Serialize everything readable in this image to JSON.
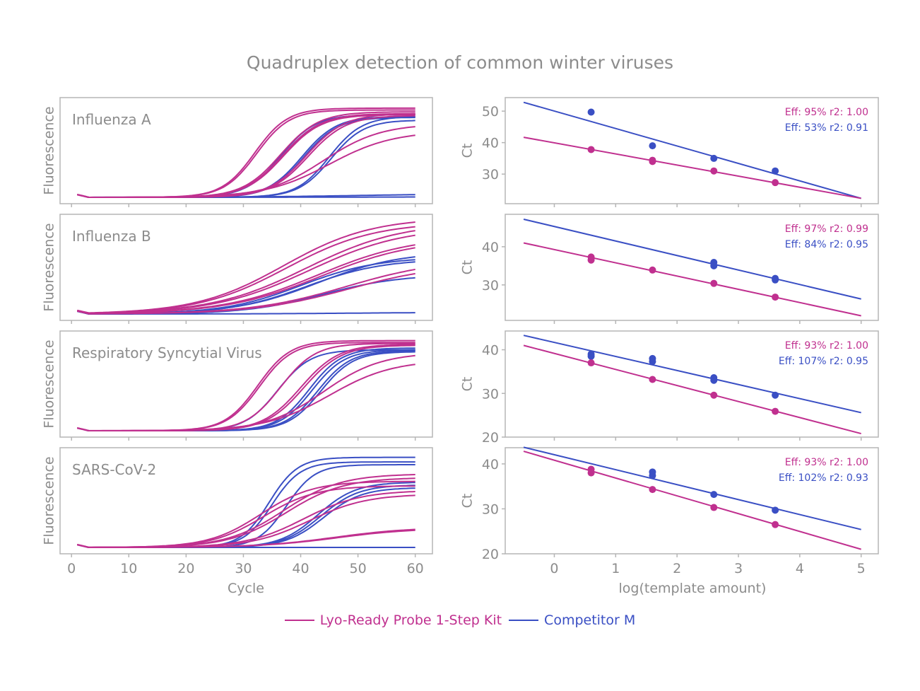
{
  "title": "Quadruplex detection of common winter viruses",
  "colors": {
    "kit": "#c0308f",
    "competitor": "#3a4fc4",
    "text": "#8c8c8c",
    "frame": "#b5b5b5"
  },
  "legend": {
    "placement": "bottom-center",
    "items": [
      {
        "label": "Lyo-Ready Probe 1-Step Kit",
        "color": "#c0308f"
      },
      {
        "label": "Competitor M",
        "color": "#3a4fc4"
      }
    ]
  },
  "chart_data": [
    {
      "type": "line",
      "title": "",
      "xlabel": "Cycle",
      "ylabel": "Fluorescence",
      "xlim": [
        -2,
        63
      ],
      "xticks": [
        0,
        10,
        20,
        30,
        40,
        50,
        60
      ],
      "y_tick_labels": false,
      "curve_model": "sigmoid amplification curves: [midpoint cycle, plateau (relative fluorescence), steepness]",
      "panels": [
        {
          "label": "Influenza A",
          "kit": [
            [
              32,
              0.97,
              0.35
            ],
            [
              32.3,
              0.95,
              0.35
            ],
            [
              36.5,
              0.93,
              0.3
            ],
            [
              36.8,
              0.91,
              0.3
            ],
            [
              37,
              0.9,
              0.3
            ],
            [
              41,
              0.91,
              0.3
            ],
            [
              41.3,
              0.89,
              0.3
            ],
            [
              44,
              0.8,
              0.2
            ],
            [
              45,
              0.72,
              0.18
            ]
          ],
          "competitor": [
            [
              36.5,
              0.9,
              0.33
            ],
            [
              40.2,
              0.88,
              0.33
            ],
            [
              40.5,
              0.87,
              0.33
            ],
            [
              45,
              0.88,
              0.35
            ],
            [
              45.3,
              0.84,
              0.35
            ],
            [
              50,
              0.04,
              0.1
            ],
            [
              50,
              0.005,
              0.1
            ]
          ]
        },
        {
          "label": "Influenza B",
          "kit": [
            [
              37,
              1.05,
              0.13
            ],
            [
              37.5,
              1.0,
              0.13
            ],
            [
              41,
              1.0,
              0.12
            ],
            [
              41.5,
              0.95,
              0.12
            ],
            [
              43,
              0.85,
              0.12
            ],
            [
              43.5,
              0.82,
              0.12
            ],
            [
              48,
              0.6,
              0.12
            ],
            [
              48.5,
              0.55,
              0.12
            ]
          ],
          "competitor": [
            [
              40,
              0.62,
              0.15
            ],
            [
              41,
              0.6,
              0.15
            ],
            [
              43,
              0.68,
              0.14
            ],
            [
              44,
              0.43,
              0.15
            ],
            [
              50,
              0.02,
              0.1
            ]
          ]
        },
        {
          "label": "Respiratory Syncytial Virus",
          "kit": [
            [
              32.5,
              0.98,
              0.35
            ],
            [
              32.8,
              0.96,
              0.35
            ],
            [
              36.5,
              0.95,
              0.33
            ],
            [
              40,
              0.94,
              0.3
            ],
            [
              40.5,
              0.93,
              0.3
            ],
            [
              44,
              0.85,
              0.2
            ],
            [
              45,
              0.77,
              0.18
            ]
          ],
          "competitor": [
            [
              36,
              0.88,
              0.35
            ],
            [
              41.5,
              0.9,
              0.35
            ],
            [
              42,
              0.88,
              0.35
            ],
            [
              43,
              0.87,
              0.35
            ],
            [
              43.5,
              0.86,
              0.35
            ]
          ]
        },
        {
          "label": "SARS-CoV-2",
          "kit": [
            [
              33,
              0.72,
              0.22
            ],
            [
              33.5,
              0.67,
              0.22
            ],
            [
              37,
              0.8,
              0.2
            ],
            [
              37.5,
              0.76,
              0.2
            ],
            [
              40.5,
              0.62,
              0.2
            ],
            [
              41.5,
              0.58,
              0.2
            ],
            [
              46,
              0.22,
              0.15
            ],
            [
              46.3,
              0.21,
              0.15
            ]
          ],
          "competitor": [
            [
              34.5,
              0.98,
              0.4
            ],
            [
              35,
              0.93,
              0.4
            ],
            [
              37.5,
              0.9,
              0.4
            ],
            [
              43,
              0.71,
              0.3
            ],
            [
              43.5,
              0.68,
              0.3
            ],
            [
              44,
              0.65,
              0.3
            ],
            [
              50,
              0.0,
              0.1
            ]
          ]
        }
      ]
    },
    {
      "type": "scatter",
      "title": "",
      "xlabel": "log(template amount)",
      "ylabel": "Ct",
      "xlim": [
        -0.8,
        5.28
      ],
      "xticks": [
        0,
        1,
        2,
        3,
        4,
        5
      ],
      "panels": [
        {
          "ylim": [
            20.6,
            54.3
          ],
          "yticks": [
            30,
            40,
            50
          ],
          "kit": {
            "annotation": "Eff: 95% r2: 1.00",
            "fit": [
              [
                -0.5,
                41.7
              ],
              [
                5,
                22.3
              ]
            ],
            "points": [
              [
                0.6,
                37.8
              ],
              [
                1.6,
                34.4
              ],
              [
                1.6,
                34.0
              ],
              [
                2.6,
                31.0
              ],
              [
                3.6,
                27.3
              ]
            ]
          },
          "competitor": {
            "annotation": "Eff: 53% r2: 0.91",
            "fit": [
              [
                -0.5,
                52.8
              ],
              [
                5,
                22.3
              ]
            ],
            "points": [
              [
                0.6,
                49.7
              ],
              [
                1.6,
                39.0
              ],
              [
                2.6,
                35.0
              ],
              [
                3.6,
                31.0
              ]
            ]
          }
        },
        {
          "ylim": [
            20.7,
            48.5
          ],
          "yticks": [
            30,
            40
          ],
          "kit": {
            "annotation": "Eff: 97% r2: 0.99",
            "fit": [
              [
                -0.5,
                41.0
              ],
              [
                5,
                21.9
              ]
            ],
            "points": [
              [
                0.6,
                37.3
              ],
              [
                0.6,
                36.5
              ],
              [
                1.6,
                33.9
              ],
              [
                2.6,
                30.4
              ],
              [
                3.6,
                26.8
              ]
            ]
          },
          "competitor": {
            "annotation": "Eff: 84% r2: 0.95",
            "fit": [
              [
                -0.5,
                47.2
              ],
              [
                5,
                26.3
              ]
            ],
            "points": [
              [
                2.6,
                35.9
              ],
              [
                2.6,
                35.0
              ],
              [
                3.6,
                31.7
              ],
              [
                3.6,
                31.3
              ]
            ]
          }
        },
        {
          "ylim": [
            20,
            44.3
          ],
          "yticks": [
            20,
            30,
            40
          ],
          "kit": {
            "annotation": "Eff: 93% r2: 1.00",
            "fit": [
              [
                -0.5,
                41.0
              ],
              [
                5,
                20.8
              ]
            ],
            "points": [
              [
                0.6,
                37.0
              ],
              [
                1.6,
                33.2
              ],
              [
                2.6,
                29.6
              ],
              [
                3.6,
                25.9
              ]
            ]
          },
          "competitor": {
            "annotation": "Eff: 107% r2: 0.95",
            "fit": [
              [
                -0.5,
                43.3
              ],
              [
                5,
                25.6
              ]
            ],
            "points": [
              [
                0.6,
                39.0
              ],
              [
                0.6,
                38.5
              ],
              [
                1.6,
                38.0
              ],
              [
                1.6,
                37.3
              ],
              [
                2.6,
                33.6
              ],
              [
                2.6,
                33.0
              ],
              [
                3.6,
                29.6
              ]
            ]
          }
        },
        {
          "ylim": [
            20,
            43.6
          ],
          "yticks": [
            20,
            30,
            40
          ],
          "kit": {
            "annotation": "Eff: 93% r2: 1.00",
            "fit": [
              [
                -0.5,
                42.8
              ],
              [
                5,
                21.0
              ]
            ],
            "points": [
              [
                0.6,
                38.8
              ],
              [
                0.6,
                38.0
              ],
              [
                1.6,
                34.3
              ],
              [
                2.6,
                30.3
              ],
              [
                3.6,
                26.5
              ]
            ]
          },
          "competitor": {
            "annotation": "Eff: 102% r2: 0.93",
            "fit": [
              [
                -0.5,
                43.7
              ],
              [
                5,
                25.4
              ]
            ],
            "points": [
              [
                1.6,
                38.2
              ],
              [
                1.6,
                37.4
              ],
              [
                2.6,
                33.2
              ],
              [
                3.6,
                29.7
              ]
            ]
          }
        }
      ]
    }
  ]
}
